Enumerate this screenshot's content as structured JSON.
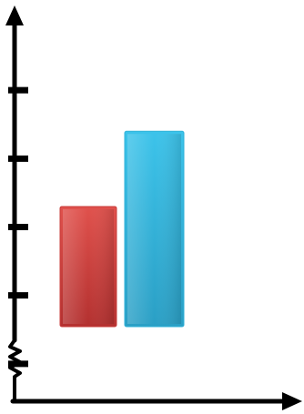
{
  "chart_data": {
    "type": "bar",
    "categories": [
      "",
      ""
    ],
    "values": [
      3.3,
      4.4
    ],
    "ylim": [
      0,
      6
    ],
    "yticks": [
      1,
      2,
      3,
      4,
      5
    ],
    "axis_break": true,
    "grid": false,
    "legend": "none",
    "title": "",
    "xlabel": "",
    "ylabel": "",
    "colors": [
      "#c83c3a",
      "#2fb1d8"
    ],
    "axis_color": "#000000"
  }
}
